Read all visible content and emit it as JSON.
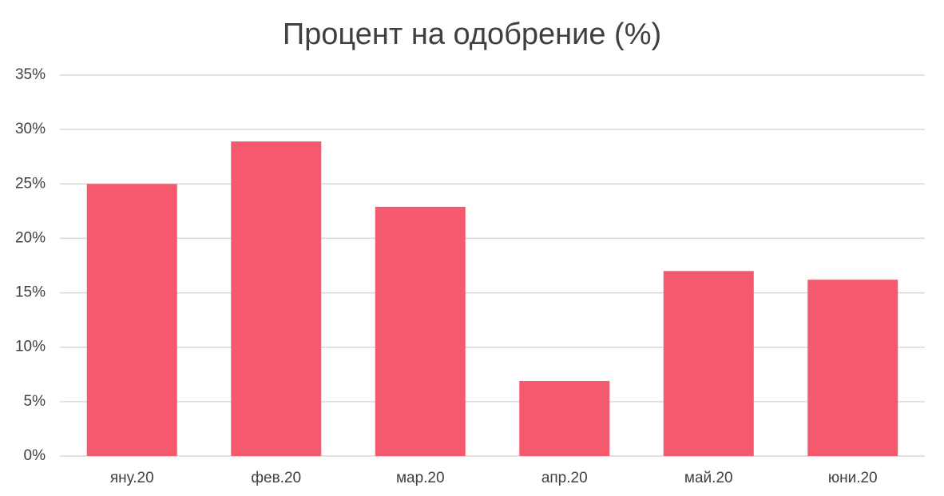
{
  "chart_data": {
    "type": "bar",
    "title": "Процент на одобрение (%)",
    "categories": [
      "яну.20",
      "фев.20",
      "мар.20",
      "апр.20",
      "май.20",
      "юни.20"
    ],
    "values": [
      25,
      28.9,
      22.9,
      6.9,
      17,
      16.2
    ],
    "color": "#f4596d",
    "ylim": [
      0,
      35
    ],
    "yticks": [
      {
        "value": 0,
        "label": "0%"
      },
      {
        "value": 5,
        "label": "5%"
      },
      {
        "value": 10,
        "label": "10%"
      },
      {
        "value": 15,
        "label": "15%"
      },
      {
        "value": 20,
        "label": "20%"
      },
      {
        "value": 25,
        "label": "25%"
      },
      {
        "value": 30,
        "label": "30%"
      },
      {
        "value": 35,
        "label": "35%"
      }
    ],
    "grid": true
  }
}
